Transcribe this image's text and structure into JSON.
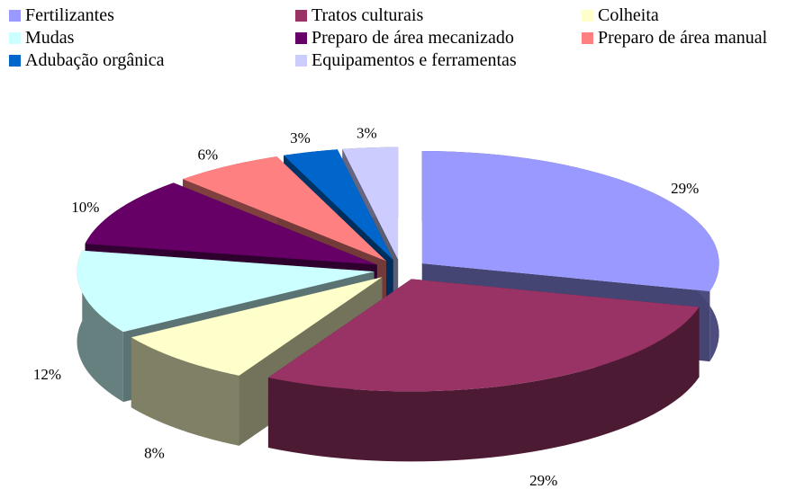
{
  "chart_data": {
    "type": "pie3d",
    "categories": [
      "Fertilizantes",
      "Tratos culturais",
      "Colheita",
      "Mudas",
      "Preparo de área mecanizado",
      "Preparo de área manual",
      "Adubação orgânica",
      "Equipamentos e ferramentas"
    ],
    "values": [
      29,
      29,
      8,
      12,
      10,
      6,
      3,
      3
    ],
    "value_labels": [
      "29%",
      "29%",
      "8%",
      "12%",
      "10%",
      "6%",
      "3%",
      "3%"
    ],
    "colors": [
      "#9999ff",
      "#993366",
      "#ffffcc",
      "#ccffff",
      "#660066",
      "#ff8080",
      "#0066cc",
      "#ccccff"
    ]
  }
}
